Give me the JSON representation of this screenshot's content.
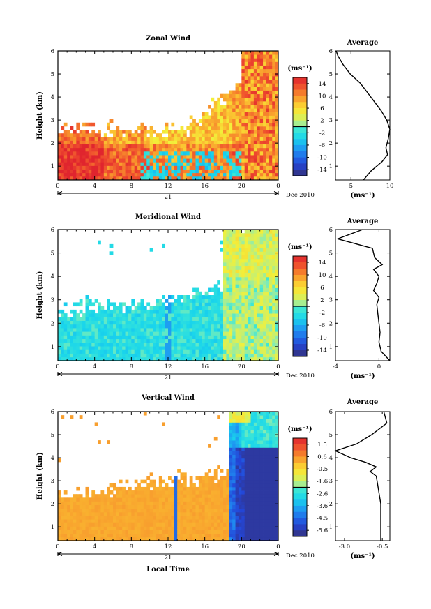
{
  "chart_data": [
    {
      "type": "heatmap",
      "title": "Zonal Wind",
      "ylabel": "Height (km)",
      "xticks": [
        "0",
        "4",
        "8",
        "12",
        "16",
        "20",
        "0"
      ],
      "yticks": [
        "1",
        "2",
        "3",
        "4",
        "5",
        "6"
      ],
      "ylim": [
        0.4,
        6
      ],
      "xlim": [
        0,
        24
      ],
      "date_day": "21",
      "date_label": "Dec 2010",
      "colorbar": {
        "unit": "(ms⁻¹)",
        "ticks": [
          "14",
          "10",
          "6",
          "2",
          "-2",
          "-6",
          "-10",
          "-14"
        ],
        "min": -16,
        "max": 16
      },
      "field_description": "Positive (eastward) winds 4-16 ms-1 below ~3.5 km, increasing with height after 16 LT; weak negative regions near surface 9-20 LT",
      "average_profile": {
        "title": "Average",
        "xlabel": "(ms⁻¹)",
        "xticks": [
          "5",
          "10"
        ],
        "xlim": [
          3,
          10
        ],
        "height": [
          0.4,
          0.8,
          1.2,
          1.5,
          1.8,
          2.2,
          2.6,
          3.0,
          3.4,
          3.8,
          4.2,
          4.6,
          5.0,
          5.4,
          5.8,
          6.0
        ],
        "values": [
          6.6,
          7.6,
          9.0,
          9.7,
          9.5,
          9.8,
          10.0,
          9.6,
          8.9,
          8.0,
          7.1,
          6.2,
          4.9,
          4.0,
          3.3,
          3.1
        ]
      }
    },
    {
      "type": "heatmap",
      "title": "Meridional Wind",
      "ylabel": "Height (km)",
      "xticks": [
        "0",
        "4",
        "8",
        "12",
        "16",
        "20",
        "0"
      ],
      "yticks": [
        "1",
        "2",
        "3",
        "4",
        "5",
        "6"
      ],
      "ylim": [
        0.4,
        6
      ],
      "xlim": [
        0,
        24
      ],
      "date_day": "21",
      "date_label": "Dec 2010",
      "colorbar": {
        "unit": "(ms⁻¹)",
        "ticks": [
          "14",
          "10",
          "6",
          "2",
          "-2",
          "-6",
          "-10",
          "-14"
        ],
        "min": -16,
        "max": 16
      },
      "field_description": "Mostly weak southward (-2 to -6 ms-1) below 3.5 km; positive values 0-6 ms-1 after 18 LT extending to 6 km",
      "average_profile": {
        "title": "Average",
        "xlabel": "(ms⁻¹)",
        "xticks": [
          "-4",
          "0"
        ],
        "xlim": [
          -4,
          1
        ],
        "height": [
          0.4,
          0.8,
          1.2,
          1.6,
          2.0,
          2.4,
          2.8,
          3.1,
          3.4,
          3.7,
          4.0,
          4.3,
          4.5,
          4.8,
          5.2,
          5.6,
          6.0
        ],
        "values": [
          1.0,
          0.2,
          0.0,
          0.1,
          0.0,
          -0.1,
          -0.2,
          0.0,
          -0.5,
          -0.2,
          0.0,
          -0.5,
          0.3,
          -0.4,
          -0.6,
          -3.8,
          -1.5
        ]
      }
    },
    {
      "type": "heatmap",
      "title": "Vertical Wind",
      "ylabel": "Height (km)",
      "xlabel": "Local Time",
      "xticks": [
        "0",
        "4",
        "8",
        "12",
        "16",
        "20",
        "0"
      ],
      "yticks": [
        "1",
        "2",
        "3",
        "4",
        "5",
        "6"
      ],
      "ylim": [
        0.4,
        6
      ],
      "xlim": [
        0,
        24
      ],
      "date_day": "21",
      "date_label": "Dec 2010",
      "colorbar": {
        "unit": "(ms⁻¹)",
        "ticks": [
          "1.5",
          "0.6",
          "-0.5",
          "-1.6",
          "-2.6",
          "-3.6",
          "-4.5",
          "-5.6"
        ],
        "min": -6.0,
        "max": 2.0
      },
      "field_description": "Near-zero to slightly positive below 4 km until 19 LT; strong downward (-4 to -6 ms-1) 19-24 LT",
      "average_profile": {
        "title": "Average",
        "xlabel": "(ms⁻¹)",
        "xticks": [
          "-3.0",
          "-0.5"
        ],
        "xlim": [
          -3.6,
          0.0
        ],
        "height": [
          0.4,
          0.8,
          1.2,
          1.6,
          2.0,
          2.4,
          2.8,
          3.2,
          3.4,
          3.6,
          3.8,
          4.0,
          4.3,
          4.6,
          5.0,
          5.5,
          6.0
        ],
        "values": [
          -0.6,
          -0.6,
          -0.6,
          -0.6,
          -0.6,
          -0.7,
          -0.8,
          -0.9,
          -1.3,
          -0.9,
          -1.6,
          -2.6,
          -3.6,
          -2.2,
          -1.2,
          -0.2,
          -0.4
        ]
      }
    }
  ]
}
